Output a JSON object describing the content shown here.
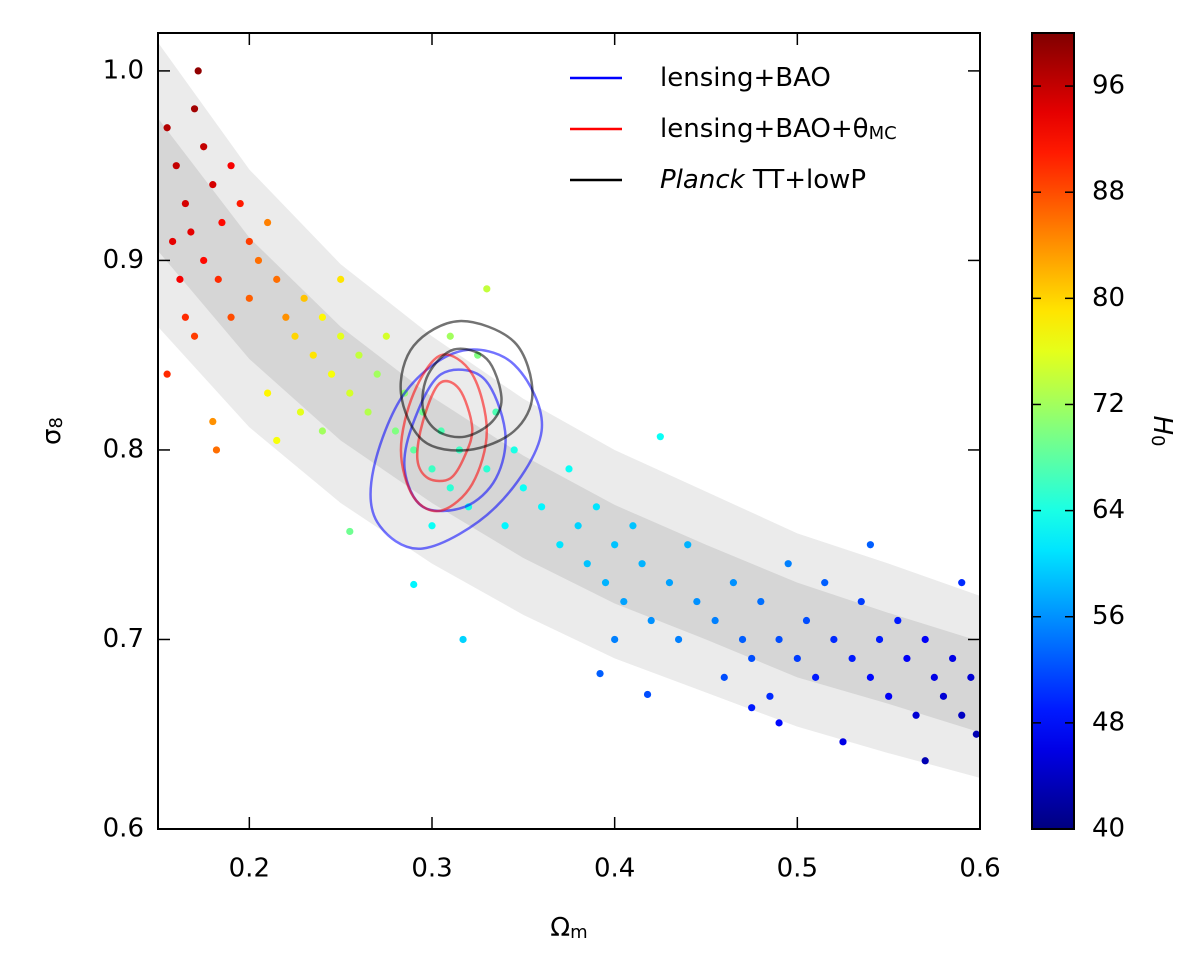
{
  "chart_data": {
    "type": "scatter",
    "xlabel": [
      {
        "text": "Ω"
      },
      {
        "text": "m",
        "style": "sub"
      }
    ],
    "ylabel": [
      {
        "text": "σ"
      },
      {
        "text": "8",
        "style": "sub"
      }
    ],
    "xlim": [
      0.15,
      0.6
    ],
    "ylim": [
      0.6,
      1.02
    ],
    "xticks": [
      0.2,
      0.3,
      0.4,
      0.5,
      0.6
    ],
    "yticks": [
      0.6,
      0.7,
      0.8,
      0.9,
      {
        "value": 1,
        "label": "1.0"
      }
    ],
    "colorbar": {
      "label": [
        {
          "text": "H",
          "style": "italic"
        },
        {
          "text": "0",
          "style": "sub"
        }
      ],
      "clim": [
        40,
        100
      ],
      "ticks": [
        40,
        48,
        56,
        64,
        72,
        80,
        88,
        96
      ],
      "colormap": "jet"
    },
    "legend": "upper right",
    "bands": [
      {
        "color": "#ebebeb",
        "x": [
          0.15,
          0.2,
          0.25,
          0.3,
          0.35,
          0.4,
          0.45,
          0.5,
          0.55,
          0.6
        ],
        "lower": [
          0.865,
          0.812,
          0.772,
          0.74,
          0.713,
          0.69,
          0.672,
          0.654,
          0.64,
          0.627
        ],
        "upper": [
          1.015,
          0.948,
          0.898,
          0.86,
          0.827,
          0.8,
          0.778,
          0.756,
          0.74,
          0.723
        ]
      },
      {
        "color": "#d6d6d6",
        "x": [
          0.15,
          0.2,
          0.25,
          0.3,
          0.35,
          0.4,
          0.45,
          0.5,
          0.55,
          0.6
        ],
        "lower": [
          0.905,
          0.848,
          0.805,
          0.772,
          0.743,
          0.719,
          0.7,
          0.68,
          0.666,
          0.651
        ],
        "upper": [
          0.975,
          0.912,
          0.865,
          0.828,
          0.797,
          0.771,
          0.75,
          0.73,
          0.714,
          0.699
        ]
      }
    ],
    "x": [
      0.155,
      0.16,
      0.165,
      0.17,
      0.172,
      0.175,
      0.158,
      0.162,
      0.168,
      0.18,
      0.185,
      0.19,
      0.195,
      0.165,
      0.17,
      0.175,
      0.183,
      0.2,
      0.155,
      0.182,
      0.19,
      0.2,
      0.205,
      0.21,
      0.215,
      0.22,
      0.18,
      0.225,
      0.23,
      0.235,
      0.24,
      0.245,
      0.25,
      0.255,
      0.26,
      0.265,
      0.27,
      0.21,
      0.215,
      0.228,
      0.25,
      0.275,
      0.28,
      0.255,
      0.24,
      0.285,
      0.29,
      0.295,
      0.3,
      0.305,
      0.31,
      0.315,
      0.32,
      0.325,
      0.33,
      0.335,
      0.34,
      0.345,
      0.35,
      0.29,
      0.317,
      0.31,
      0.33,
      0.36,
      0.3,
      0.37,
      0.375,
      0.38,
      0.385,
      0.39,
      0.395,
      0.4,
      0.405,
      0.41,
      0.415,
      0.42,
      0.425,
      0.43,
      0.435,
      0.44,
      0.445,
      0.392,
      0.418,
      0.4,
      0.455,
      0.46,
      0.465,
      0.47,
      0.475,
      0.48,
      0.485,
      0.49,
      0.495,
      0.5,
      0.505,
      0.51,
      0.515,
      0.52,
      0.525,
      0.53,
      0.535,
      0.54,
      0.545,
      0.55,
      0.555,
      0.56,
      0.565,
      0.57,
      0.575,
      0.58,
      0.585,
      0.59,
      0.595,
      0.598,
      0.54,
      0.59,
      0.57,
      0.475,
      0.49
    ],
    "y": [
      0.97,
      0.95,
      0.93,
      0.98,
      1.0,
      0.96,
      0.91,
      0.89,
      0.915,
      0.94,
      0.92,
      0.95,
      0.93,
      0.87,
      0.86,
      0.9,
      0.89,
      0.91,
      0.84,
      0.8,
      0.87,
      0.88,
      0.9,
      0.92,
      0.89,
      0.87,
      0.815,
      0.86,
      0.88,
      0.85,
      0.87,
      0.84,
      0.86,
      0.83,
      0.85,
      0.82,
      0.84,
      0.83,
      0.805,
      0.82,
      0.89,
      0.86,
      0.81,
      0.757,
      0.81,
      0.83,
      0.8,
      0.82,
      0.79,
      0.81,
      0.78,
      0.8,
      0.77,
      0.85,
      0.79,
      0.82,
      0.76,
      0.8,
      0.78,
      0.729,
      0.7,
      0.86,
      0.885,
      0.77,
      0.76,
      0.75,
      0.79,
      0.76,
      0.74,
      0.77,
      0.73,
      0.75,
      0.72,
      0.76,
      0.74,
      0.71,
      0.807,
      0.73,
      0.7,
      0.75,
      0.72,
      0.682,
      0.671,
      0.7,
      0.71,
      0.68,
      0.73,
      0.7,
      0.69,
      0.72,
      0.67,
      0.7,
      0.74,
      0.69,
      0.71,
      0.68,
      0.73,
      0.7,
      0.646,
      0.69,
      0.72,
      0.68,
      0.7,
      0.67,
      0.71,
      0.69,
      0.66,
      0.7,
      0.68,
      0.67,
      0.69,
      0.66,
      0.68,
      0.65,
      0.75,
      0.73,
      0.636,
      0.664,
      0.656
    ],
    "c": [
      97,
      96,
      95,
      98,
      99,
      96,
      94,
      93,
      94,
      95,
      92,
      93,
      91,
      90,
      89,
      92,
      90,
      89,
      90,
      86,
      88,
      87,
      86,
      85,
      86,
      84,
      84,
      80,
      81,
      79,
      78,
      77,
      76,
      75,
      74,
      73,
      72,
      78,
      77,
      76,
      79,
      75,
      70,
      69,
      72,
      71,
      68,
      69,
      66,
      67,
      65,
      66,
      64,
      70,
      65,
      67,
      62,
      64,
      63,
      62,
      60,
      72,
      74,
      62,
      63,
      61,
      63,
      60,
      59,
      61,
      58,
      59,
      57,
      59,
      58,
      56,
      63,
      57,
      55,
      58,
      56,
      53,
      52,
      55,
      55,
      52,
      56,
      53,
      52,
      54,
      50,
      52,
      55,
      51,
      52,
      49,
      53,
      50,
      46,
      49,
      51,
      48,
      49,
      47,
      49,
      47,
      45,
      47,
      46,
      45,
      46,
      44,
      45,
      43,
      53,
      50,
      43,
      49,
      48
    ],
    "contour_alpha": 0.55,
    "series": [
      {
        "name_parts": [
          {
            "text": "lensing+BAO"
          }
        ],
        "color": "#0000ff",
        "contours": [
          {
            "x": [
              0.36,
              0.345,
              0.315,
              0.285,
              0.268,
              0.27,
              0.295,
              0.335
            ],
            "y": [
              0.81,
              0.845,
              0.852,
              0.83,
              0.79,
              0.762,
              0.748,
              0.77
            ]
          },
          {
            "x": [
              0.34,
              0.328,
              0.305,
              0.29,
              0.285,
              0.295,
              0.318,
              0.335
            ],
            "y": [
              0.81,
              0.838,
              0.84,
              0.815,
              0.79,
              0.77,
              0.77,
              0.785
            ]
          }
        ]
      },
      {
        "name_parts": [
          {
            "text": "lensing+BAO+θ"
          },
          {
            "text": "MC",
            "style": "sub"
          }
        ],
        "color": "#ff0000",
        "contours": [
          {
            "x": [
              0.33,
              0.322,
              0.305,
              0.29,
              0.283,
              0.29,
              0.305,
              0.322
            ],
            "y": [
              0.81,
              0.84,
              0.85,
              0.83,
              0.8,
              0.775,
              0.768,
              0.782
            ]
          },
          {
            "x": [
              0.322,
              0.315,
              0.304,
              0.295,
              0.292,
              0.298,
              0.31,
              0.318
            ],
            "y": [
              0.812,
              0.832,
              0.835,
              0.815,
              0.795,
              0.785,
              0.785,
              0.797
            ]
          }
        ]
      },
      {
        "name_parts": [
          {
            "text": "Planck",
            "style": "italic"
          },
          {
            "text": " TT+lowP"
          }
        ],
        "color": "#000000",
        "contours": [
          {
            "x": [
              0.355,
              0.345,
              0.315,
              0.29,
              0.283,
              0.295,
              0.32,
              0.345
            ],
            "y": [
              0.83,
              0.857,
              0.868,
              0.855,
              0.83,
              0.805,
              0.8,
              0.81
            ]
          },
          {
            "x": [
              0.338,
              0.33,
              0.312,
              0.298,
              0.295,
              0.303,
              0.318,
              0.333
            ],
            "y": [
              0.828,
              0.848,
              0.853,
              0.84,
              0.822,
              0.81,
              0.807,
              0.815
            ]
          }
        ]
      }
    ]
  }
}
